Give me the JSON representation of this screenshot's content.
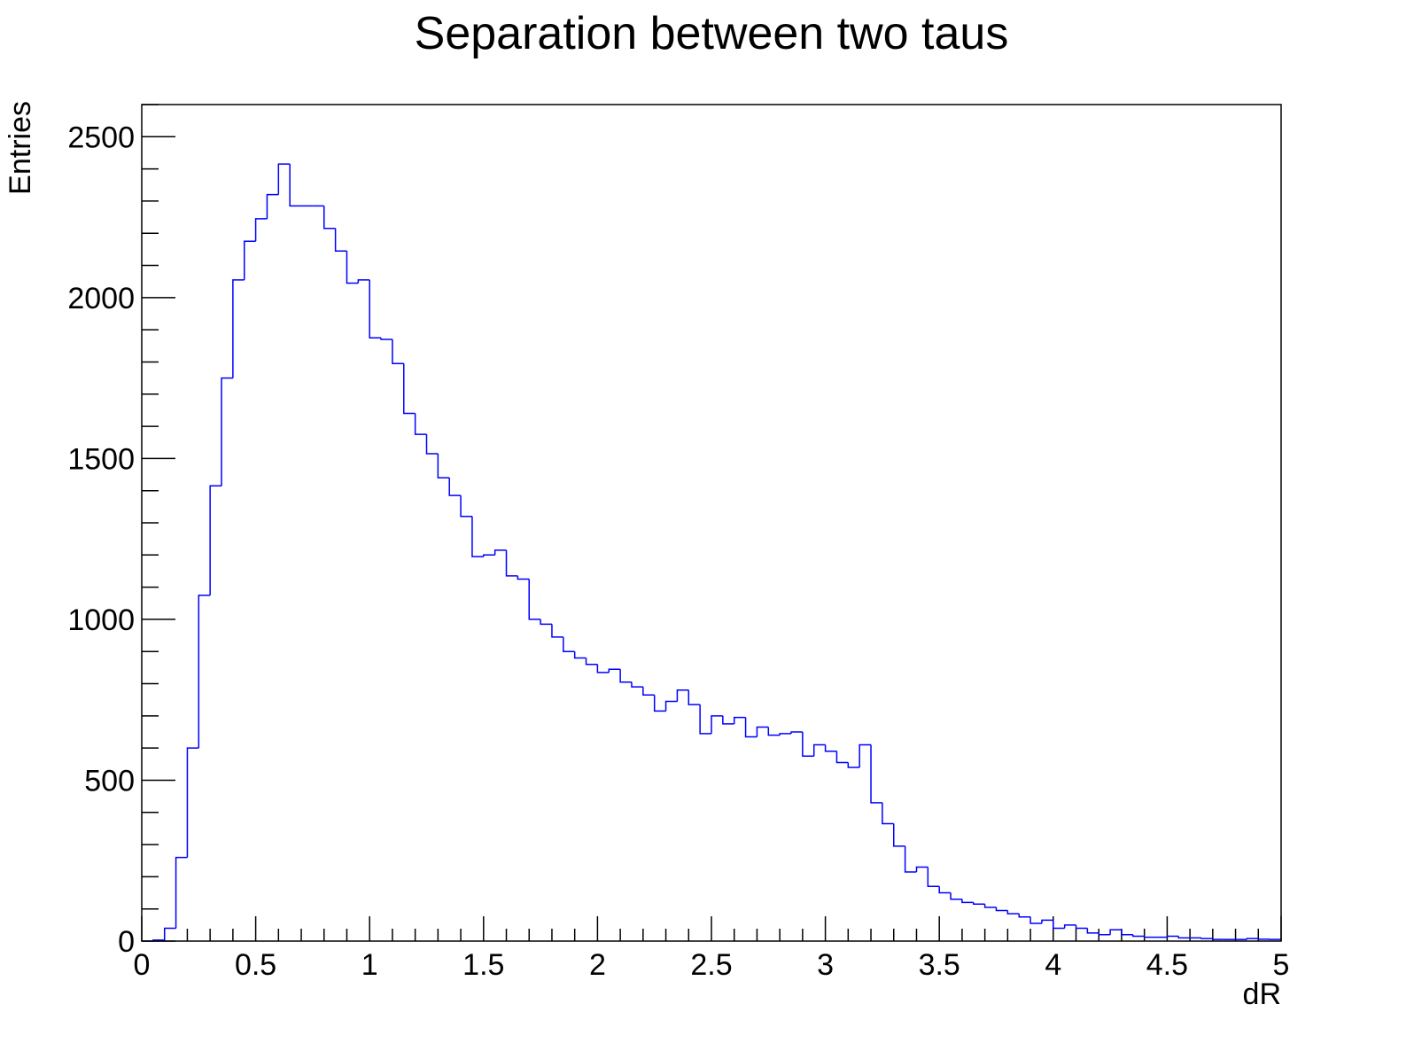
{
  "chart_data": {
    "type": "histogram",
    "title": "Separation between two taus",
    "xlabel": "dR",
    "ylabel": "Entries",
    "xlim": [
      0,
      5
    ],
    "ylim": [
      0,
      2600
    ],
    "bin_width": 0.05,
    "x_ticks": [
      0,
      0.5,
      1,
      1.5,
      2,
      2.5,
      3,
      3.5,
      4,
      4.5,
      5
    ],
    "x_tick_labels": [
      "0",
      "0.5",
      "1",
      "1.5",
      "2",
      "2.5",
      "3",
      "3.5",
      "4",
      "4.5",
      "5"
    ],
    "y_ticks": [
      0,
      500,
      1000,
      1500,
      2000,
      2500
    ],
    "y_tick_labels": [
      "0",
      "500",
      "1000",
      "1500",
      "2000",
      "2500"
    ],
    "line_color": "#0000ff",
    "grid": false,
    "series": [
      {
        "values": [
          0,
          3,
          40,
          260,
          600,
          1075,
          1415,
          1750,
          2055,
          2175,
          2245,
          2320,
          2415,
          2285,
          2285,
          2285,
          2215,
          2145,
          2045,
          2055,
          1875,
          1870,
          1795,
          1640,
          1575,
          1515,
          1440,
          1385,
          1320,
          1195,
          1200,
          1215,
          1135,
          1125,
          1000,
          985,
          945,
          900,
          880,
          860,
          835,
          845,
          805,
          790,
          765,
          715,
          745,
          780,
          735,
          645,
          700,
          675,
          695,
          635,
          665,
          640,
          645,
          650,
          575,
          610,
          590,
          555,
          540,
          610,
          430,
          365,
          295,
          215,
          230,
          170,
          150,
          130,
          120,
          115,
          105,
          95,
          85,
          75,
          55,
          65,
          40,
          50,
          40,
          25,
          20,
          35,
          20,
          15,
          12,
          12,
          15,
          10,
          10,
          8,
          5,
          5,
          5,
          8,
          6,
          5
        ]
      }
    ]
  }
}
